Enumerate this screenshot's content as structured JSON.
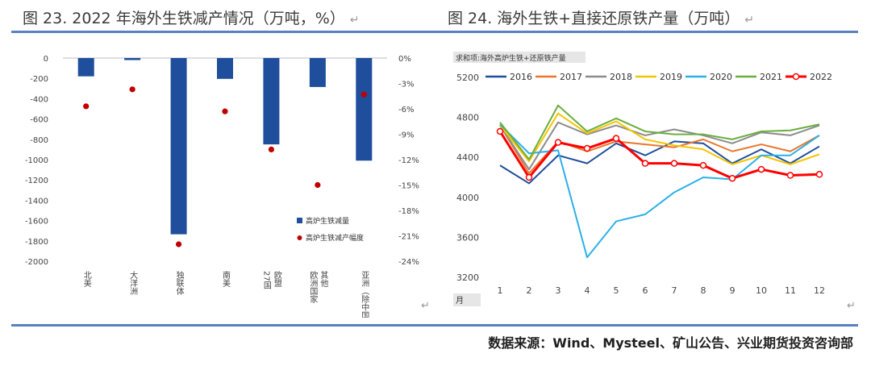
{
  "figure_left": {
    "title": "图 23. 2022 年海外生铁减产情况（万吨，%）",
    "return_mark": "↵"
  },
  "figure_right": {
    "title": "图 24. 海外生铁+直接还原铁产量（万吨）",
    "return_mark": "↵"
  },
  "source": "数据来源：Wind、Mysteel、矿山公告、兴业期货投资咨询部",
  "return_mark": "↵",
  "colors": {
    "bar": "#1f4e9c",
    "dot": "#c00000",
    "rule": "#5b7fc1"
  },
  "chart_data": [
    {
      "type": "bar",
      "title": "图 23. 2022 年海外生铁减产情况（万吨，%）",
      "categories": [
        "北美",
        "大洋洲",
        "独联体",
        "南美",
        "27国 欧盟",
        "欧洲国家 其他",
        "亚洲（除中国）"
      ],
      "series": [
        {
          "name": "高炉生铁减量",
          "axis": "left",
          "kind": "bar",
          "values": [
            -180,
            -20,
            -1735,
            -205,
            -850,
            -285,
            -1010
          ]
        },
        {
          "name": "高炉生铁减产幅度",
          "axis": "right",
          "kind": "dot",
          "values": [
            -5.7,
            -3.7,
            -22.0,
            -6.3,
            -10.8,
            -15.0,
            -4.3
          ]
        }
      ],
      "ylim_left": [
        -2000,
        0
      ],
      "yticks_left": [
        "0",
        "-200",
        "-400",
        "-600",
        "-800",
        "-1000",
        "-1200",
        "-1400",
        "-1600",
        "-1800",
        "-2000"
      ],
      "ylim_right": [
        -24,
        0
      ],
      "yticks_right": [
        "0%",
        "-3%",
        "-6%",
        "-9%",
        "-12%",
        "-15%",
        "-18%",
        "-21%",
        "-24%"
      ],
      "legend": [
        "高炉生铁减量",
        "高炉生铁减产幅度"
      ]
    },
    {
      "type": "line",
      "title": "图 24. 海外生铁+直接还原铁产量（万吨）",
      "field_label": "求和项:海外高炉生铁+还原铁产量",
      "x": [
        1,
        2,
        3,
        4,
        5,
        6,
        7,
        8,
        9,
        10,
        11,
        12
      ],
      "x_labels": [
        "1",
        "2",
        "3",
        "4",
        "5",
        "6",
        "7",
        "8",
        "9",
        "10",
        "11",
        "12"
      ],
      "xlabel": "月",
      "ylim": [
        3200,
        5200
      ],
      "yticks": [
        "3200",
        "3600",
        "4000",
        "4400",
        "4800",
        "5200"
      ],
      "series": [
        {
          "name": "2016",
          "color": "#1f4e9c",
          "values": [
            4320,
            4140,
            4420,
            4340,
            4540,
            4420,
            4560,
            4540,
            4340,
            4480,
            4340,
            4510
          ]
        },
        {
          "name": "2017",
          "color": "#e8772e",
          "values": [
            4720,
            4240,
            4560,
            4460,
            4560,
            4530,
            4500,
            4580,
            4460,
            4530,
            4460,
            4620
          ]
        },
        {
          "name": "2018",
          "color": "#8c8c8c",
          "values": [
            4720,
            4280,
            4750,
            4630,
            4720,
            4620,
            4680,
            4620,
            4540,
            4650,
            4620,
            4720
          ]
        },
        {
          "name": "2019",
          "color": "#f5c400",
          "values": [
            4720,
            4360,
            4840,
            4640,
            4760,
            4580,
            4520,
            4480,
            4330,
            4420,
            4330,
            4430
          ]
        },
        {
          "name": "2020",
          "color": "#2bb0e8",
          "values": [
            4730,
            4440,
            4470,
            3400,
            3760,
            3830,
            4050,
            4200,
            4180,
            4420,
            4420,
            4620
          ]
        },
        {
          "name": "2021",
          "color": "#6aae3f",
          "values": [
            4750,
            4380,
            4920,
            4660,
            4790,
            4660,
            4630,
            4630,
            4580,
            4660,
            4670,
            4730
          ]
        },
        {
          "name": "2022",
          "color": "#ff0000",
          "values": [
            4660,
            4200,
            4550,
            4490,
            4590,
            4340,
            4340,
            4320,
            4190,
            4280,
            4220,
            4230
          ],
          "markers": true
        }
      ]
    }
  ]
}
